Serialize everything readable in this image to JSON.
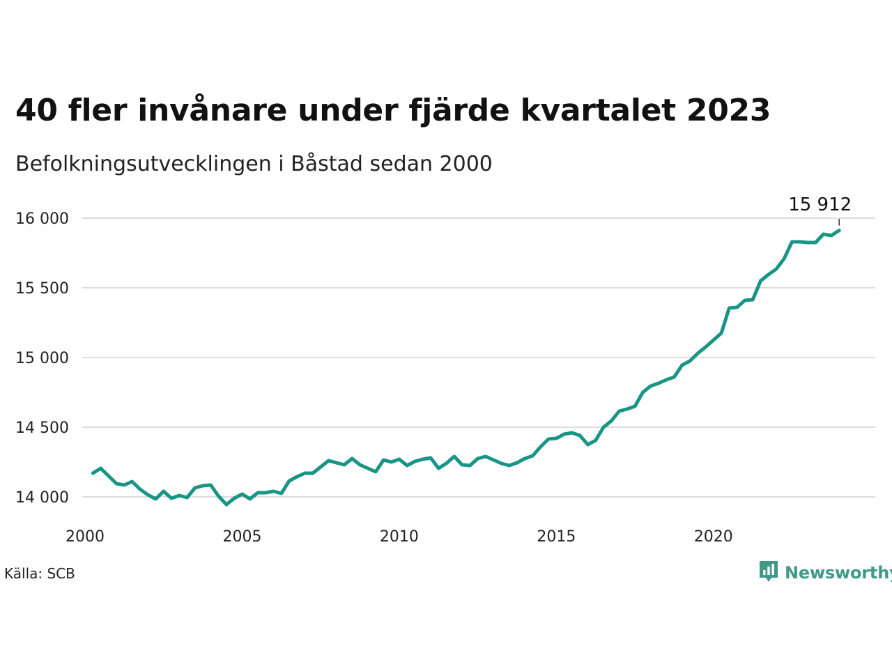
{
  "title": "40 fler invånare under fjärde kvartalet 2023",
  "subtitle": "Befolkningsutvecklingen i Båstad sedan 2000",
  "source": "Källa: SCB",
  "brand": {
    "name": "Newsworthy",
    "icon": "newsworthy-logo-icon",
    "color": "#3f9a88"
  },
  "colors": {
    "line": "#1a9585",
    "grid": "#dddddd",
    "text": "#222222"
  },
  "chart_data": {
    "type": "line",
    "title": "40 fler invånare under fjärde kvartalet 2023",
    "subtitle": "Befolkningsutvecklingen i Båstad sedan 2000",
    "xlabel": "",
    "ylabel": "",
    "xlim": [
      2000,
      2024.75
    ],
    "ylim": [
      13800,
      16150
    ],
    "y_ticks": [
      14000,
      14500,
      15000,
      15500,
      16000
    ],
    "y_tick_labels": [
      "14 000",
      "14 500",
      "15 000",
      "15 500",
      "16 000"
    ],
    "x_ticks": [
      2000,
      2005,
      2010,
      2015,
      2020
    ],
    "x_tick_labels": [
      "2000",
      "2005",
      "2010",
      "2015",
      "2020"
    ],
    "grid": "horizontal",
    "legend": "none",
    "last_label": "15 912",
    "series": [
      {
        "x": [
          2000.25,
          2000.5,
          2000.75,
          2001,
          2001.25,
          2001.5,
          2001.75,
          2002,
          2002.25,
          2002.5,
          2002.75,
          2003,
          2003.25,
          2003.5,
          2003.75,
          2004,
          2004.25,
          2004.5,
          2004.75,
          2005,
          2005.25,
          2005.5,
          2005.75,
          2006,
          2006.25,
          2006.5,
          2006.75,
          2007,
          2007.25,
          2007.5,
          2007.75,
          2008,
          2008.25,
          2008.5,
          2008.75,
          2009,
          2009.25,
          2009.5,
          2009.75,
          2010,
          2010.25,
          2010.5,
          2010.75,
          2011,
          2011.25,
          2011.5,
          2011.75,
          2012,
          2012.25,
          2012.5,
          2012.75,
          2013,
          2013.25,
          2013.5,
          2013.75,
          2014,
          2014.25,
          2014.5,
          2014.75,
          2015,
          2015.25,
          2015.5,
          2015.75,
          2016,
          2016.25,
          2016.5,
          2016.75,
          2017,
          2017.25,
          2017.5,
          2017.75,
          2018,
          2018.25,
          2018.5,
          2018.75,
          2019,
          2019.25,
          2019.5,
          2019.75,
          2020,
          2020.25,
          2020.5,
          2020.75,
          2021,
          2021.25,
          2021.5,
          2021.75,
          2022,
          2022.25,
          2022.5,
          2022.75,
          2023,
          2023.25,
          2023.5,
          2023.75,
          2024
        ],
        "values": [
          14170,
          14205,
          14150,
          14095,
          14085,
          14110,
          14055,
          14015,
          13985,
          14040,
          13990,
          14010,
          13995,
          14065,
          14080,
          14085,
          14005,
          13945,
          13990,
          14020,
          13985,
          14030,
          14030,
          14040,
          14025,
          14115,
          14145,
          14170,
          14170,
          14215,
          14260,
          14245,
          14230,
          14275,
          14230,
          14205,
          14180,
          14265,
          14250,
          14270,
          14225,
          14255,
          14270,
          14280,
          14205,
          14240,
          14290,
          14230,
          14225,
          14275,
          14290,
          14265,
          14240,
          14225,
          14245,
          14275,
          14295,
          14360,
          14415,
          14420,
          14450,
          14460,
          14440,
          14375,
          14405,
          14500,
          14545,
          14615,
          14630,
          14650,
          14750,
          14795,
          14815,
          14840,
          14860,
          14945,
          14975,
          15030,
          15075,
          15125,
          15175,
          15355,
          15360,
          15410,
          15415,
          15550,
          15595,
          15635,
          15710,
          15830,
          15830,
          15825,
          15825,
          15885,
          15875,
          15912
        ]
      }
    ]
  }
}
